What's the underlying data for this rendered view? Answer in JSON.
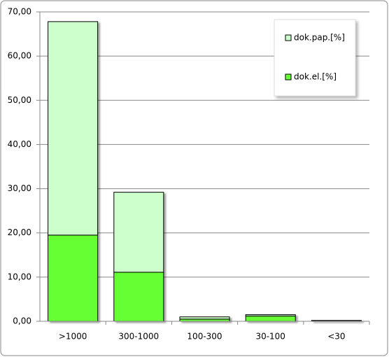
{
  "chart_data": {
    "type": "stacked-bar",
    "categories": [
      ">1000",
      "300-1000",
      "100-300",
      "30-100",
      "<30"
    ],
    "series": [
      {
        "name": "dok.el.[%]",
        "color": "#66ff33",
        "values": [
          19.5,
          11.1,
          0.5,
          1.2,
          0.1
        ]
      },
      {
        "name": "dok.pap.[%]",
        "color": "#ccffcc",
        "values": [
          48.3,
          18.1,
          0.5,
          0.3,
          0.1
        ]
      }
    ],
    "ylim": [
      0,
      70
    ],
    "yticks": [
      {
        "value": 0,
        "label": "0,00"
      },
      {
        "value": 10,
        "label": "10,00"
      },
      {
        "value": 20,
        "label": "20,00"
      },
      {
        "value": 30,
        "label": "30,00"
      },
      {
        "value": 40,
        "label": "40,00"
      },
      {
        "value": 50,
        "label": "50,00"
      },
      {
        "value": 60,
        "label": "60,00"
      },
      {
        "value": 70,
        "label": "70,00"
      }
    ],
    "grid": true,
    "legend": "top-right"
  }
}
